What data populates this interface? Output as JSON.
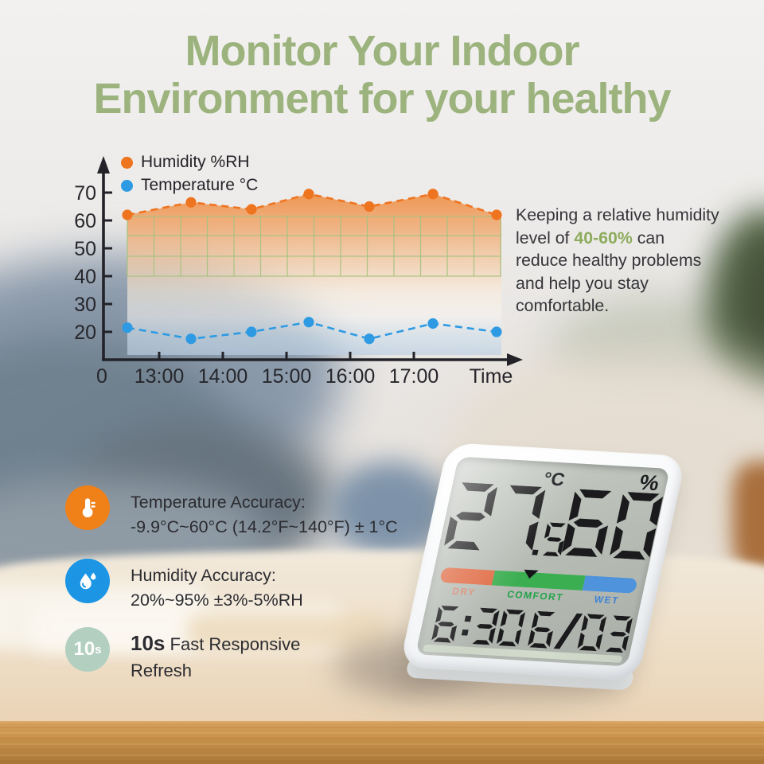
{
  "title": {
    "line1": "Monitor Your Indoor",
    "line2": "Environment for your healthy",
    "color": "#9cb37e"
  },
  "chart_data": {
    "type": "line",
    "title": "",
    "xlabel": "Time",
    "ylabel": "",
    "origin_label": "0",
    "x_ticks": {
      "labels": [
        "13:00",
        "14:00",
        "15:00",
        "16:00",
        "17:00"
      ],
      "hours": [
        13,
        14,
        15,
        16,
        17
      ]
    },
    "y_ticks": [
      20,
      30,
      40,
      50,
      60,
      70
    ],
    "xlim_hours": [
      12.1,
      18.6
    ],
    "ylim": [
      13,
      73
    ],
    "grid": {
      "show": true,
      "color": "#a6c27f",
      "band_values": [
        40,
        61.5
      ]
    },
    "legend_position": "top-left",
    "line_style": "dashed-with-dots",
    "series": [
      {
        "name": "Humidity %RH",
        "color": "#ee7420",
        "x_hours": [
          12.5,
          13.5,
          14.45,
          15.35,
          16.3,
          17.3,
          18.3
        ],
        "values": [
          62,
          66.5,
          64,
          69.5,
          65,
          69.5,
          62
        ]
      },
      {
        "name": "Temperature °C",
        "color": "#2e9ae3",
        "x_hours": [
          12.5,
          13.5,
          14.45,
          15.35,
          16.3,
          17.3,
          18.3
        ],
        "values": [
          21.5,
          17.5,
          20,
          23.5,
          17.5,
          23,
          20
        ]
      }
    ],
    "area_fill": {
      "top_color": "#ef8f46",
      "bottom_color": "#bacfe4"
    }
  },
  "note": {
    "pre": "Keeping a relative humidity level of ",
    "highlight": "40-60%",
    "post": " can reduce healthy problems and help you stay comfortable.",
    "highlight_color": "#8cab5c"
  },
  "features": [
    {
      "icon": "thermometer-icon",
      "icon_bg": "#f08018",
      "title": "Temperature Accuracy:",
      "detail": "-9.9°C~60°C (14.2°F~140°F) ± 1°C"
    },
    {
      "icon": "water-drops-icon",
      "icon_bg": "#1b95e4",
      "title": "Humidity Accuracy:",
      "detail": "20%~95% ±3%-5%RH"
    },
    {
      "icon": "10s-badge",
      "icon_bg": "#b2cfc0",
      "badge_num": "10",
      "badge_s": "s",
      "bold": "10s",
      "rest": "Fast Responsive Refresh"
    }
  ],
  "device": {
    "temperature": {
      "integer": "27",
      "decimal": ".5",
      "unit": "°C"
    },
    "humidity": {
      "value": "60",
      "unit": "%"
    },
    "comfort_bar": {
      "segments": [
        {
          "label": "DRY",
          "width": 0.27,
          "color": "#e06b44",
          "label_color": "#e27a5e"
        },
        {
          "label": "COMFORT",
          "width": 0.46,
          "color": "#3cae52",
          "label_color": "#23a34a"
        },
        {
          "label": "WET",
          "width": 0.27,
          "color": "#4f93dc",
          "label_color": "#3e82d6"
        }
      ],
      "pointer_position": 0.45
    },
    "time": "6:30",
    "date": "6/03"
  }
}
